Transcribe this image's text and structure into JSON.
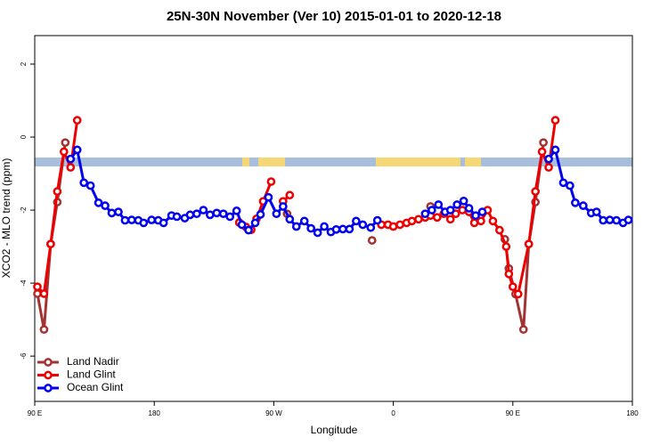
{
  "chart_data": {
    "type": "line",
    "title": "25N-30N November (Ver 10)   2015-01-01 to 2020-12-18",
    "x_label": "Longitude",
    "y_label": "XCO2 - MLO trend (ppm)",
    "xlim": [
      0,
      450
    ],
    "xticks": [
      {
        "value": 0,
        "label": "90 E"
      },
      {
        "value": 90,
        "label": "180"
      },
      {
        "value": 180,
        "label": "90 W"
      },
      {
        "value": 270,
        "label": "0"
      },
      {
        "value": 360,
        "label": "90 E"
      },
      {
        "value": 450,
        "label": "180"
      }
    ],
    "ylim": [
      -7.24,
      2.78
    ],
    "yticks": [
      -6,
      -4,
      -2,
      0,
      2
    ],
    "legend": "bottom-left",
    "series": [
      {
        "name": "Land Nadir",
        "color": "#a33333",
        "x": [
          2,
          7,
          12,
          17,
          23,
          100,
          190,
          220,
          254,
          280,
          298,
          330,
          354,
          357,
          362,
          368,
          372,
          377,
          383
        ],
        "values": [
          -4.29,
          -5.27,
          -2.93,
          -1.78,
          -0.15,
          null,
          -2.1,
          null,
          -2.83,
          null,
          -1.9,
          null,
          -2.8,
          -3.6,
          -4.3,
          -5.27,
          -2.93,
          -1.78,
          -0.15
        ]
      },
      {
        "name": "Land Glint",
        "color": "#ee0000",
        "x": [
          2,
          7,
          12,
          17,
          22,
          27,
          32,
          150,
          154,
          159,
          163,
          167,
          172,
          178,
          181,
          187,
          192,
          230,
          261,
          266,
          270,
          275,
          280,
          284,
          289,
          294,
          298,
          303,
          308,
          313,
          317,
          322,
          327,
          331,
          336,
          341,
          345,
          350,
          355,
          357,
          360,
          364,
          372,
          377,
          382,
          387,
          392
        ],
        "values": [
          -4.1,
          -4.29,
          -2.93,
          -1.49,
          -0.4,
          -0.83,
          0.46,
          null,
          -2.34,
          -2.46,
          -2.54,
          -2.24,
          -1.76,
          -1.22,
          null,
          -1.76,
          -1.59,
          null,
          -2.4,
          -2.4,
          -2.45,
          -2.4,
          -2.35,
          -2.3,
          -2.25,
          -2.2,
          -2.15,
          -2.2,
          -2.1,
          -2.25,
          -2.1,
          -2.0,
          -2.05,
          -2.35,
          -2.3,
          -2.0,
          -2.3,
          -2.55,
          -3.0,
          -3.75,
          -4.1,
          -4.3,
          -2.93,
          -1.49,
          -0.4,
          -0.83,
          0.46
        ]
      },
      {
        "name": "Ocean Glint",
        "color": "#0000ee",
        "x": [
          27,
          32,
          37,
          42,
          48,
          53,
          58,
          63,
          68,
          73,
          78,
          82,
          88,
          93,
          97,
          103,
          107,
          113,
          117,
          122,
          127,
          132,
          137,
          142,
          147,
          152,
          156,
          161,
          166,
          170,
          176,
          182,
          187,
          192,
          197,
          203,
          208,
          213,
          218,
          223,
          227,
          232,
          237,
          242,
          247,
          253,
          258,
          270,
          294,
          299,
          304,
          309,
          313,
          318,
          323,
          327,
          332,
          337,
          360,
          387,
          392,
          398,
          403,
          407,
          413,
          419,
          423,
          428,
          433,
          438,
          443,
          447
        ],
        "values": [
          -0.6,
          -0.35,
          -1.25,
          -1.33,
          -1.8,
          -1.88,
          -2.08,
          -2.05,
          -2.28,
          -2.27,
          -2.28,
          -2.35,
          -2.27,
          -2.28,
          -2.35,
          -2.15,
          -2.18,
          -2.22,
          -2.13,
          -2.1,
          -2.0,
          -2.13,
          -2.08,
          -2.1,
          -2.18,
          -2.02,
          -2.4,
          -2.55,
          -2.35,
          -2.12,
          -1.65,
          -2.1,
          -1.9,
          -2.25,
          -2.45,
          -2.3,
          -2.5,
          -2.62,
          -2.45,
          -2.6,
          -2.53,
          -2.52,
          -2.52,
          -2.3,
          -2.4,
          -2.48,
          -2.28,
          null,
          -2.1,
          -2.0,
          -1.85,
          -2.05,
          -2.0,
          -1.85,
          -1.75,
          -1.95,
          -2.15,
          -2.05,
          null,
          -0.6,
          -0.35,
          -1.25,
          -1.33,
          -1.8,
          -1.88,
          -2.08,
          -2.05,
          -2.28,
          -2.27,
          -2.28,
          -2.35,
          -2.27
        ]
      }
    ]
  }
}
